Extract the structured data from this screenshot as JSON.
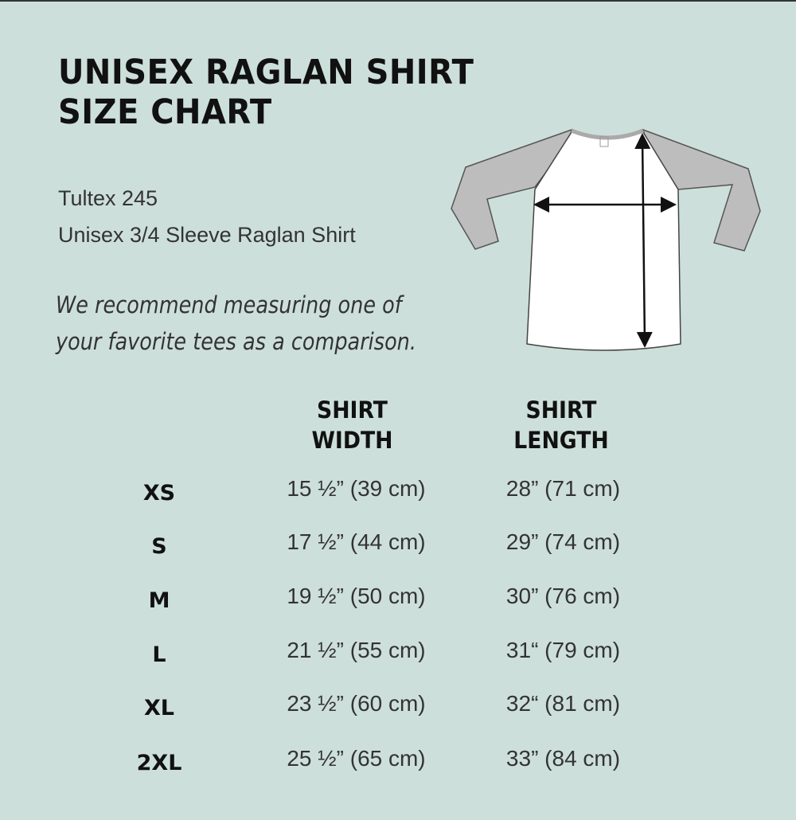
{
  "title": {
    "line1": "UNISEX RAGLAN SHIRT",
    "line2": "SIZE CHART"
  },
  "product": {
    "model": "Tultex 245",
    "description": "Unisex 3/4 Sleeve Raglan Shirt"
  },
  "note": {
    "line1": "We recommend measuring one of",
    "line2": "your favorite tees as a comparison."
  },
  "colors": {
    "background": "#cddfda",
    "sleeve": "#bdbdbd",
    "body": "#ffffff"
  },
  "table": {
    "headers": {
      "width": [
        "SHIRT",
        "WIDTH"
      ],
      "length": [
        "SHIRT",
        "LENGTH"
      ]
    },
    "rows": [
      {
        "size": "XS",
        "width": "15 ½” (39 cm)",
        "length": "28” (71 cm)"
      },
      {
        "size": "S",
        "width": "17 ½” (44 cm)",
        "length": "29” (74 cm)"
      },
      {
        "size": "M",
        "width": "19 ½” (50 cm)",
        "length": "30” (76 cm)"
      },
      {
        "size": "L",
        "width": "21 ½” (55 cm)",
        "length": "31“ (79 cm)"
      },
      {
        "size": "XL",
        "width": "23 ½” (60 cm)",
        "length": "32“ (81 cm)"
      },
      {
        "size": "2XL",
        "width": "25 ½” (65 cm)",
        "length": "33” (84 cm)"
      }
    ]
  }
}
